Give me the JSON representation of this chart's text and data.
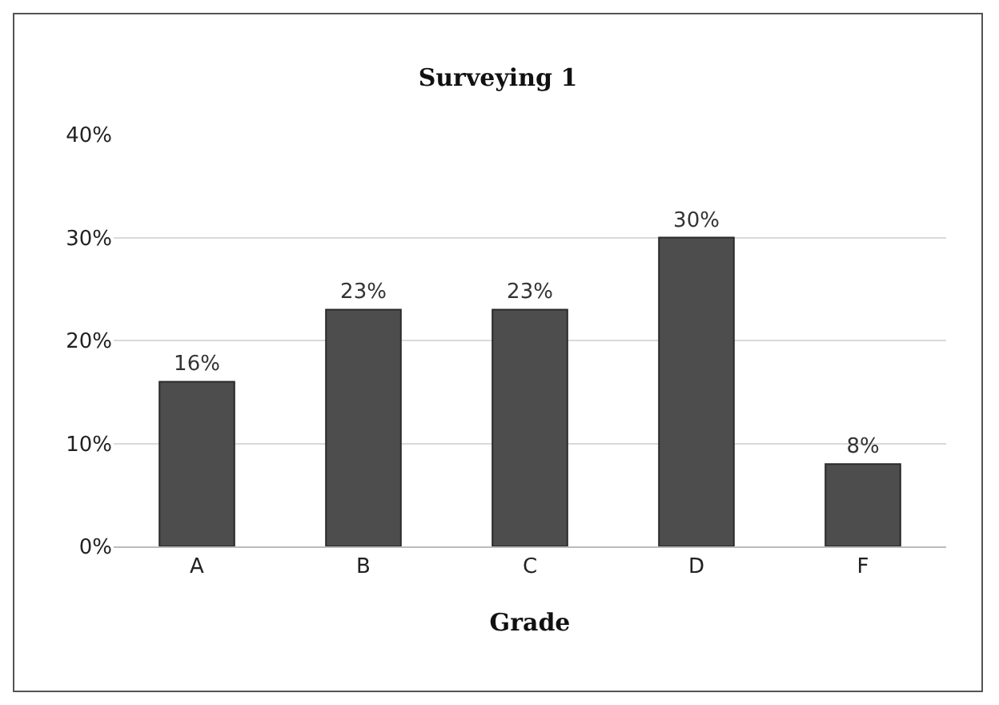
{
  "chart_data": {
    "type": "bar",
    "title": "Surveying 1",
    "xlabel": "Grade",
    "categories": [
      "A",
      "B",
      "C",
      "D",
      "F"
    ],
    "values": [
      16,
      23,
      23,
      30,
      8
    ],
    "value_labels": [
      "16%",
      "23%",
      "23%",
      "30%",
      "8%"
    ],
    "color": "#4d4d4d",
    "ylim": [
      0,
      40
    ],
    "yticks": [
      {
        "value": 0,
        "label": "0%"
      },
      {
        "value": 10,
        "label": "10%"
      },
      {
        "value": 20,
        "label": "20%"
      },
      {
        "value": 30,
        "label": "30%"
      },
      {
        "value": 40,
        "label": "40%"
      }
    ],
    "grid": "y"
  }
}
